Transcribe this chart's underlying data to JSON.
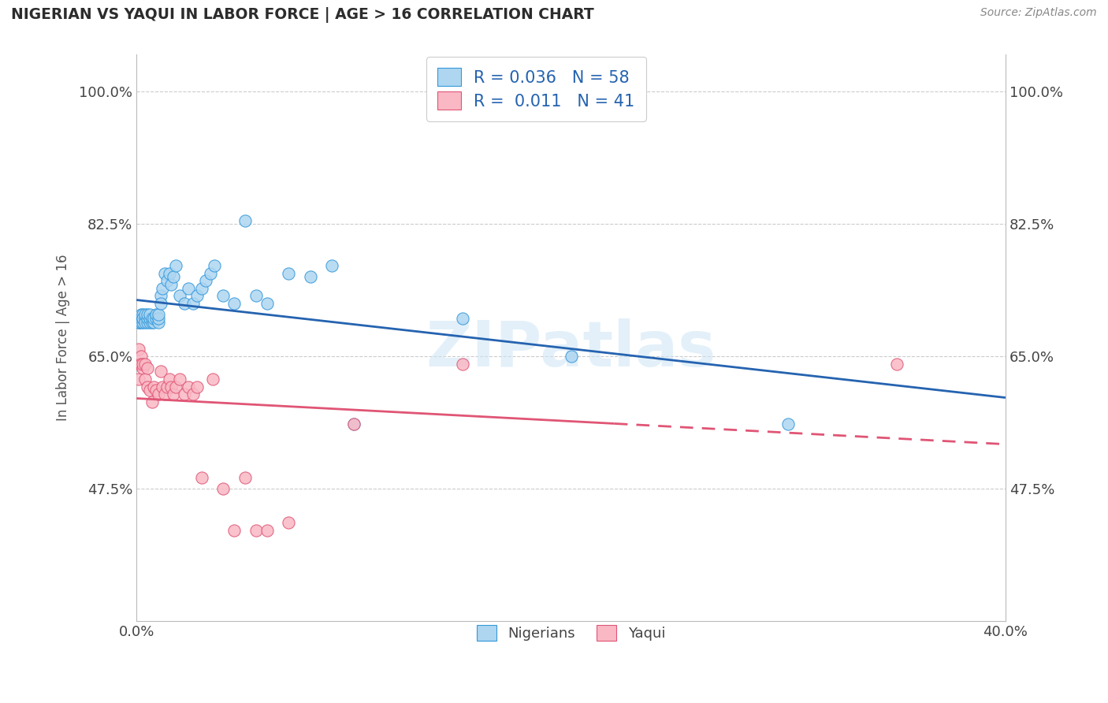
{
  "title": "NIGERIAN VS YAQUI IN LABOR FORCE | AGE > 16 CORRELATION CHART",
  "source": "Source: ZipAtlas.com",
  "ylabel": "In Labor Force | Age > 16",
  "xlim": [
    0.0,
    0.4
  ],
  "ylim": [
    0.3,
    1.05
  ],
  "ytick_vals": [
    0.475,
    0.65,
    0.825,
    1.0
  ],
  "ytick_labels": [
    "47.5%",
    "65.0%",
    "82.5%",
    "100.0%"
  ],
  "xtick_vals": [
    0.0,
    0.4
  ],
  "xtick_labels": [
    "0.0%",
    "40.0%"
  ],
  "r_nigerian": 0.036,
  "n_nigerian": 58,
  "r_yaqui": 0.011,
  "n_yaqui": 41,
  "nigerian_fill": "#aed6f1",
  "nigerian_edge": "#3498db",
  "yaqui_fill": "#f9b8c4",
  "yaqui_edge": "#e05575",
  "nigerian_line_color": "#2563b0",
  "yaqui_line_color": "#e05575",
  "background_color": "#ffffff",
  "watermark": "ZIPatlas",
  "nigerian_x": [
    0.001,
    0.001,
    0.002,
    0.002,
    0.002,
    0.003,
    0.003,
    0.003,
    0.003,
    0.003,
    0.004,
    0.004,
    0.004,
    0.005,
    0.005,
    0.005,
    0.006,
    0.006,
    0.006,
    0.007,
    0.007,
    0.008,
    0.008,
    0.009,
    0.009,
    0.01,
    0.01,
    0.01,
    0.011,
    0.011,
    0.012,
    0.013,
    0.014,
    0.015,
    0.016,
    0.017,
    0.018,
    0.02,
    0.022,
    0.024,
    0.026,
    0.028,
    0.03,
    0.032,
    0.034,
    0.036,
    0.04,
    0.045,
    0.05,
    0.055,
    0.06,
    0.07,
    0.08,
    0.09,
    0.1,
    0.15,
    0.2,
    0.3
  ],
  "nigerian_y": [
    0.695,
    0.695,
    0.7,
    0.695,
    0.705,
    0.7,
    0.695,
    0.7,
    0.705,
    0.7,
    0.7,
    0.695,
    0.705,
    0.695,
    0.7,
    0.705,
    0.695,
    0.7,
    0.705,
    0.695,
    0.7,
    0.695,
    0.7,
    0.7,
    0.705,
    0.695,
    0.7,
    0.705,
    0.73,
    0.72,
    0.74,
    0.76,
    0.75,
    0.76,
    0.745,
    0.755,
    0.77,
    0.73,
    0.72,
    0.74,
    0.72,
    0.73,
    0.74,
    0.75,
    0.76,
    0.77,
    0.73,
    0.72,
    0.83,
    0.73,
    0.72,
    0.76,
    0.755,
    0.77,
    0.56,
    0.7,
    0.65,
    0.56
  ],
  "yaqui_x": [
    0.001,
    0.001,
    0.001,
    0.002,
    0.002,
    0.002,
    0.003,
    0.003,
    0.004,
    0.004,
    0.005,
    0.005,
    0.006,
    0.007,
    0.008,
    0.009,
    0.01,
    0.011,
    0.012,
    0.013,
    0.014,
    0.015,
    0.016,
    0.017,
    0.018,
    0.02,
    0.022,
    0.024,
    0.026,
    0.028,
    0.03,
    0.035,
    0.04,
    0.045,
    0.05,
    0.055,
    0.06,
    0.07,
    0.1,
    0.15,
    0.35
  ],
  "yaqui_y": [
    0.62,
    0.64,
    0.66,
    0.64,
    0.65,
    0.64,
    0.635,
    0.64,
    0.62,
    0.64,
    0.61,
    0.635,
    0.605,
    0.59,
    0.61,
    0.605,
    0.6,
    0.63,
    0.61,
    0.6,
    0.61,
    0.62,
    0.61,
    0.6,
    0.61,
    0.62,
    0.6,
    0.61,
    0.6,
    0.61,
    0.49,
    0.62,
    0.475,
    0.42,
    0.49,
    0.42,
    0.42,
    0.43,
    0.56,
    0.64,
    0.64
  ]
}
